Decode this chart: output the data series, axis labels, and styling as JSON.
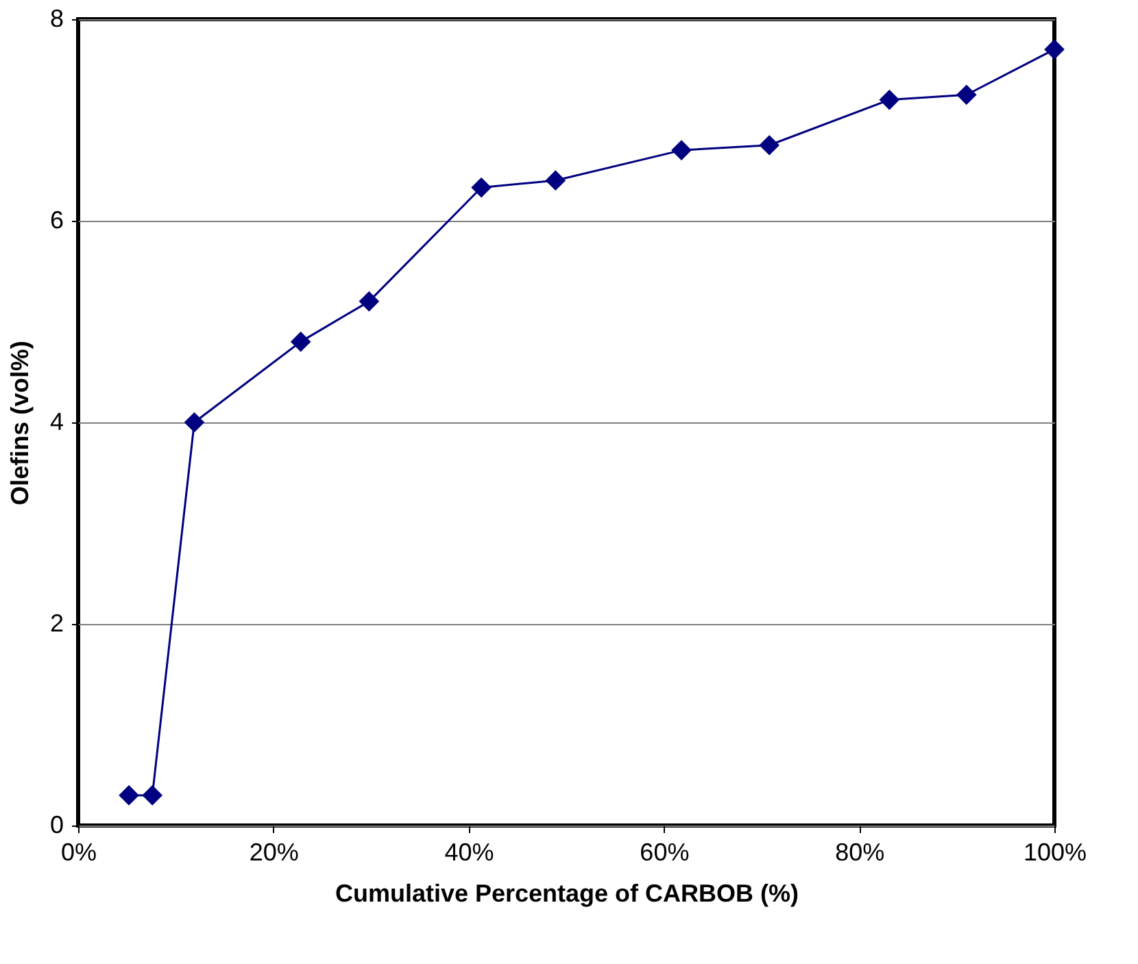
{
  "chart_data": {
    "type": "line",
    "xlabel": "Cumulative Percentage of CARBOB (%)",
    "ylabel": "Olefins (vol%)",
    "x": [
      5.2,
      7.6,
      11.9,
      22.8,
      29.8,
      41.3,
      48.9,
      61.8,
      70.8,
      83.1,
      91.0,
      100
    ],
    "series": [
      {
        "color": "#000080",
        "values": [
          0.3,
          0.3,
          4.0,
          4.8,
          5.2,
          6.33,
          6.4,
          6.7,
          6.75,
          7.2,
          7.25,
          7.7
        ]
      }
    ],
    "xlim": [
      0,
      100
    ],
    "xticks": [
      {
        "value": 0,
        "label": "0%"
      },
      {
        "value": 20,
        "label": "20%"
      },
      {
        "value": 40,
        "label": "40%"
      },
      {
        "value": 60,
        "label": "60%"
      },
      {
        "value": 80,
        "label": "80%"
      },
      {
        "value": 100,
        "label": "100%"
      }
    ],
    "ylim": [
      0,
      8
    ],
    "yticks": [
      0,
      2,
      4,
      6,
      8
    ],
    "grid": "y",
    "marker": "diamond",
    "line_style": "solid"
  }
}
